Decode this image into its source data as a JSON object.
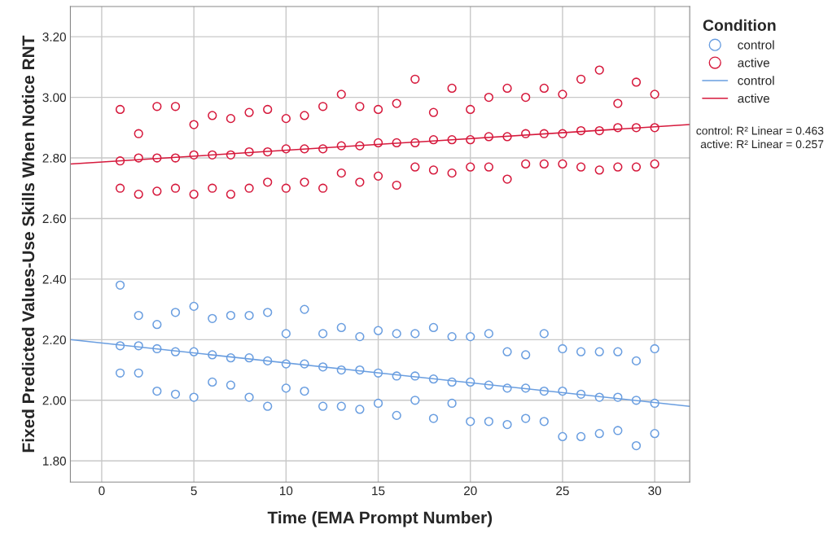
{
  "chart_data": {
    "type": "scatter",
    "xlabel": "Time (EMA Prompt Number)",
    "ylabel": "Fixed Predicted Values-Use Skills When Notice RNT",
    "legend_title": "Condition",
    "xlim": [
      -1.7,
      31.9
    ],
    "ylim": [
      1.73,
      3.3
    ],
    "xticks": [
      0,
      5,
      10,
      15,
      20,
      25,
      30
    ],
    "yticks": [
      {
        "value": 1.8,
        "label": "1.80"
      },
      {
        "value": 2.0,
        "label": "2.00"
      },
      {
        "value": 2.2,
        "label": "2.20"
      },
      {
        "value": 2.4,
        "label": "2.40"
      },
      {
        "value": 2.6,
        "label": "2.60"
      },
      {
        "value": 2.8,
        "label": "2.80"
      },
      {
        "value": 3.0,
        "label": "3.00"
      },
      {
        "value": 3.2,
        "label": "3.20"
      }
    ],
    "grid": true,
    "legend": "top right",
    "marker": "circle",
    "annotations": [
      "control: R² Linear = 0.463",
      "active: R² Linear = 0.257"
    ],
    "series": [
      {
        "name": "control",
        "color": "#6a9ee0",
        "x": [
          1,
          1,
          1,
          2,
          2,
          2,
          3,
          3,
          3,
          4,
          4,
          4,
          5,
          5,
          5,
          6,
          6,
          6,
          7,
          7,
          7,
          8,
          8,
          8,
          9,
          9,
          9,
          10,
          10,
          10,
          11,
          11,
          11,
          12,
          12,
          12,
          13,
          13,
          13,
          14,
          14,
          14,
          15,
          15,
          15,
          16,
          16,
          16,
          17,
          17,
          17,
          18,
          18,
          18,
          19,
          19,
          19,
          20,
          20,
          20,
          21,
          21,
          21,
          22,
          22,
          22,
          23,
          23,
          23,
          24,
          24,
          24,
          25,
          25,
          25,
          26,
          26,
          26,
          27,
          27,
          27,
          28,
          28,
          28,
          29,
          29,
          29,
          30,
          30,
          30
        ],
        "values": [
          2.09,
          2.18,
          2.38,
          2.09,
          2.18,
          2.28,
          2.03,
          2.17,
          2.25,
          2.02,
          2.16,
          2.29,
          2.01,
          2.16,
          2.31,
          2.06,
          2.15,
          2.27,
          2.05,
          2.14,
          2.28,
          2.01,
          2.14,
          2.28,
          1.98,
          2.13,
          2.29,
          2.04,
          2.12,
          2.22,
          2.03,
          2.12,
          2.3,
          1.98,
          2.11,
          2.22,
          1.98,
          2.1,
          2.24,
          1.97,
          2.1,
          2.21,
          1.99,
          2.09,
          2.23,
          1.95,
          2.08,
          2.22,
          2.0,
          2.08,
          2.22,
          1.94,
          2.07,
          2.24,
          1.99,
          2.06,
          2.21,
          1.93,
          2.06,
          2.21,
          1.93,
          2.05,
          2.22,
          1.92,
          2.04,
          2.16,
          1.94,
          2.04,
          2.15,
          1.93,
          2.03,
          2.22,
          1.88,
          2.03,
          2.17,
          1.88,
          2.02,
          2.16,
          1.89,
          2.01,
          2.16,
          1.9,
          2.01,
          2.16,
          1.85,
          2.0,
          2.13,
          1.89,
          1.99,
          2.17
        ]
      },
      {
        "name": "active",
        "color": "#d6193c",
        "x": [
          1,
          1,
          1,
          2,
          2,
          2,
          3,
          3,
          3,
          4,
          4,
          4,
          5,
          5,
          5,
          6,
          6,
          6,
          7,
          7,
          7,
          8,
          8,
          8,
          9,
          9,
          9,
          10,
          10,
          10,
          11,
          11,
          11,
          12,
          12,
          12,
          13,
          13,
          13,
          14,
          14,
          14,
          15,
          15,
          15,
          16,
          16,
          16,
          17,
          17,
          17,
          18,
          18,
          18,
          19,
          19,
          19,
          20,
          20,
          20,
          21,
          21,
          21,
          22,
          22,
          22,
          23,
          23,
          23,
          24,
          24,
          24,
          25,
          25,
          25,
          26,
          26,
          26,
          27,
          27,
          27,
          28,
          28,
          28,
          29,
          29,
          29,
          30,
          30,
          30
        ],
        "values": [
          2.7,
          2.79,
          2.96,
          2.68,
          2.8,
          2.88,
          2.69,
          2.8,
          2.97,
          2.7,
          2.8,
          2.97,
          2.68,
          2.81,
          2.91,
          2.7,
          2.81,
          2.94,
          2.68,
          2.81,
          2.93,
          2.7,
          2.82,
          2.95,
          2.72,
          2.82,
          2.96,
          2.7,
          2.83,
          2.93,
          2.72,
          2.83,
          2.94,
          2.7,
          2.83,
          2.97,
          2.75,
          2.84,
          3.01,
          2.72,
          2.84,
          2.97,
          2.74,
          2.85,
          2.96,
          2.71,
          2.85,
          2.98,
          2.77,
          2.85,
          3.06,
          2.76,
          2.86,
          2.95,
          2.75,
          2.86,
          3.03,
          2.77,
          2.86,
          2.96,
          2.77,
          2.87,
          3.0,
          2.73,
          2.87,
          3.03,
          2.78,
          2.88,
          3.0,
          2.78,
          2.88,
          3.03,
          2.78,
          2.88,
          3.01,
          2.77,
          2.89,
          3.06,
          2.76,
          2.89,
          3.09,
          2.77,
          2.9,
          2.98,
          2.77,
          2.9,
          3.05,
          2.78,
          2.9,
          3.01
        ]
      },
      {
        "type": "line",
        "name": "control",
        "color": "#6a9ee0",
        "marker": "none",
        "x": [
          -1.7,
          31.9
        ],
        "values": [
          2.2,
          1.98
        ]
      },
      {
        "type": "line",
        "name": "active",
        "color": "#d6193c",
        "marker": "none",
        "x": [
          -1.7,
          31.9
        ],
        "values": [
          2.78,
          2.91
        ]
      }
    ]
  }
}
